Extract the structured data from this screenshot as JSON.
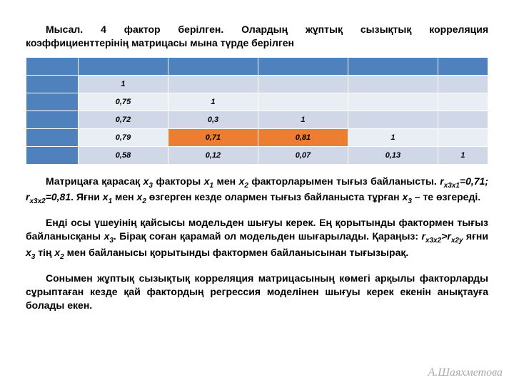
{
  "intro": "Мысал. 4 фактор берілген. Олардың жұптық сызықтық корреляция коэффициенттерінің матрицасы мына түрде берілген",
  "table": {
    "colors": {
      "header": "#4f81bd",
      "light": "#d0d8e8",
      "lighter": "#e9edf4",
      "highlight": "#ed7d31",
      "border": "#ffffff"
    },
    "rows": [
      {
        "bg": "light",
        "cells": [
          "1",
          "",
          "",
          "",
          ""
        ]
      },
      {
        "bg": "lighter",
        "cells": [
          "0,75",
          "1",
          "",
          "",
          ""
        ]
      },
      {
        "bg": "light",
        "cells": [
          "0,72",
          "0,3",
          "1",
          "",
          ""
        ]
      },
      {
        "bg": "lighter",
        "cells": [
          "0,79",
          "0,71",
          "0,81",
          "1",
          ""
        ],
        "hl": [
          1,
          2
        ]
      },
      {
        "bg": "light",
        "cells": [
          "0,58",
          "0,12",
          "0,07",
          "0,13",
          "1"
        ]
      }
    ]
  },
  "p1_a": "Матрицаға қарасақ ",
  "p1_x3": "x",
  "p1_b": " факторы ",
  "p1_c": " мен ",
  "p1_d": " факторларымен тығыз байланысты. ",
  "p1_r1": "r",
  "p1_r1v": "=0,71; ",
  "p1_r2": "r",
  "p1_r2v": "=0,81",
  "p1_e": ". Яғни ",
  "p1_f": " өзгерген кезде олармен тығыз байланыста тұрған ",
  "p1_g": " – те өзгереді.",
  "p2_a": "Енді осы үшеуінің қайсысы модельден шығуы керек. Ең қорытынды фактормен тығыз байланысқаны ",
  "p2_b": ". Бірақ соған қарамай ол модельден шығарылады. Қараңыз: ",
  "p2_c": " яғни ",
  "p2_d": " тің ",
  "p2_e": " мен байланысы қорытынды фактормен байланысынан тығызырақ.",
  "p3": "Сонымен жұптық сызықтық корреляция матрицасының көмегі арқылы факторларды сұрыптаған кезде қай фактордың регрессия моделінен шығуы керек екенін анықтауға болады екен.",
  "sig": "А.Шаяхметова"
}
